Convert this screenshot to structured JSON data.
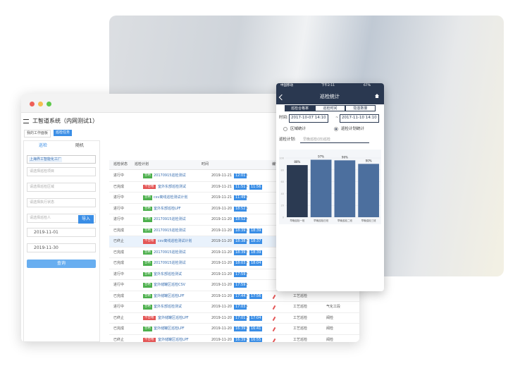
{
  "desktop": {
    "app_title": "工智道系统（内网测试1）",
    "tabs": [
      "我的工作面板",
      "巡检任务"
    ],
    "side_tabs": [
      "巡检",
      "随机"
    ],
    "plant": "上海界工智能化工厂",
    "selects": [
      "请选择巡检项目",
      "请选择巡检区域",
      "请选择执行状态",
      "请选择巡检人"
    ],
    "import_button": "导入",
    "start_date": "2019-11-01",
    "end_date": "2019-11-30",
    "query_button": "查询",
    "table": {
      "headers": [
        "巡检状态",
        "巡检计划",
        "时间",
        "编号"
      ],
      "rows": [
        {
          "status": "进行中",
          "result": "合格",
          "plan": "20170915巡检测试",
          "date": "2019-11-21",
          "start": "12:01",
          "sep": "~"
        },
        {
          "status": "已完成",
          "result": "不合格",
          "plan": "室外东部巡检测试",
          "date": "2019-11-21",
          "start": "11:51",
          "sep": "~",
          "end": "11:56"
        },
        {
          "status": "进行中",
          "result": "合格",
          "plan": "csv离线巡检测试计划",
          "date": "2019-11-21",
          "start": "11:49",
          "sep": "~"
        },
        {
          "status": "进行中",
          "result": "合格",
          "plan": "室外东部巡检LPF",
          "date": "2019-11-20",
          "start": "18:52",
          "sep": "~"
        },
        {
          "status": "进行中",
          "result": "合格",
          "plan": "20170915巡检测试",
          "date": "2019-11-20",
          "start": "18:52",
          "sep": "~"
        },
        {
          "status": "已完成",
          "result": "合格",
          "plan": "20170915巡检测试",
          "date": "2019-11-20",
          "start": "18:39",
          "sep": "~",
          "end": "18:39"
        },
        {
          "status": "已终止",
          "result": "不合格",
          "plan": "csv离线巡检测试计划",
          "date": "2019-11-20",
          "start": "18:38",
          "sep": "~",
          "end": "18:37"
        },
        {
          "status": "已完成",
          "result": "合格",
          "plan": "20170915巡检测试",
          "date": "2019-11-20",
          "start": "18:39",
          "sep": "~",
          "end": "18:39"
        },
        {
          "status": "已完成",
          "result": "合格",
          "plan": "20170915巡检测试",
          "date": "2019-11-20",
          "start": "18:03",
          "sep": "~",
          "end": "18:04"
        },
        {
          "status": "进行中",
          "result": "合格",
          "plan": "室外东部巡检测试",
          "date": "2019-11-20",
          "start": "17:59",
          "sep": "~"
        },
        {
          "status": "进行中",
          "result": "合格",
          "plan": "室外储罐区巡检CSV",
          "date": "2019-11-20",
          "start": "17:59",
          "sep": "~"
        },
        {
          "status": "已完成",
          "result": "合格",
          "plan": "室外储罐区巡检LPF",
          "date": "2019-11-20",
          "start": "17:44",
          "sep": "~",
          "end": "17:56",
          "type": "工艺巡检"
        },
        {
          "status": "进行中",
          "result": "合格",
          "plan": "室外东部巡检测试",
          "date": "2019-11-20",
          "start": "17:03",
          "sep": "~",
          "type": "工艺巡检",
          "area": "气化工段"
        },
        {
          "status": "已终止",
          "result": "不合格",
          "plan": "室外储罐区巡检LPF",
          "date": "2019-11-20",
          "start": "17:01",
          "sep": "~",
          "end": "17:04",
          "type": "工艺巡检",
          "area": "阀检"
        },
        {
          "status": "已完成",
          "result": "合格",
          "plan": "室外储罐区巡检LPF",
          "date": "2019-11-20",
          "start": "16:39",
          "sep": "~",
          "end": "16:41",
          "type": "工艺巡检",
          "area": "阀检"
        },
        {
          "status": "已终止",
          "result": "不合格",
          "plan": "室外储罐区巡检LPF",
          "date": "2019-11-20",
          "start": "16:39",
          "sep": "~",
          "end": "16:55",
          "type": "工艺巡检",
          "area": "阀检"
        }
      ]
    }
  },
  "mobile": {
    "carrier": "中国移动",
    "clock": "下午2:11",
    "battery": "67%",
    "title": "巡检统计",
    "tabs": [
      "巡检合格率",
      "巡检时间",
      "隐患数量"
    ],
    "time_label": "时间:",
    "from": "2017-10-07 14:10",
    "tilde": "~",
    "to": "2017-11-10 14:10",
    "radios": [
      "区域统计",
      "巡检计划统计"
    ],
    "plan_label": "巡检计划:",
    "plan_value": "早晚巡检(旧)巡检",
    "chart_data": {
      "type": "bar",
      "categories": [
        "早晚巡检一班",
        "早晚巡检日班",
        "早晚巡检二班",
        "早晚巡检三班"
      ],
      "values": [
        88,
        97,
        96,
        90
      ],
      "value_labels": [
        "88%",
        "97%",
        "96%",
        "90%"
      ],
      "colors": [
        "#2b3a52",
        "#4c6f9e",
        "#4c6f9e",
        "#4c6f9e"
      ],
      "ylim": [
        0,
        100
      ],
      "yticks": [
        0,
        20,
        40,
        60,
        80,
        100
      ]
    }
  }
}
